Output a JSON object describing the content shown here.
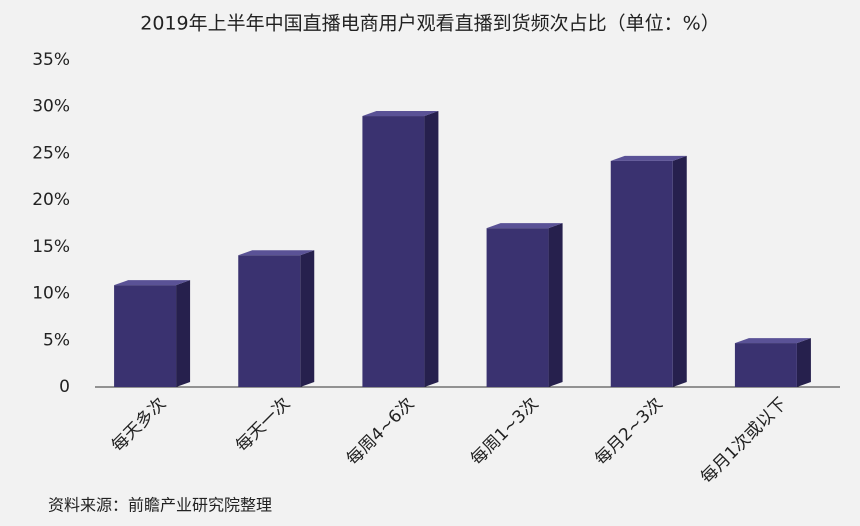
{
  "chart_data": {
    "type": "bar3d",
    "title": "2019年上半年中国直播电商用户观看直播到货频次占比（单位：%）",
    "categories": [
      "每天多次",
      "每天一次",
      "每周4~6次",
      "每周1~3次",
      "每月2~3次",
      "每月1次或以下"
    ],
    "values": [
      10.9,
      14.1,
      29.0,
      17.0,
      24.2,
      4.7
    ],
    "color": "#3a3270",
    "ylim": [
      0,
      35
    ],
    "yticks": [
      {
        "value": 0,
        "label": "0"
      },
      {
        "value": 5,
        "label": "5%"
      },
      {
        "value": 10,
        "label": "10%"
      },
      {
        "value": 15,
        "label": "15%"
      },
      {
        "value": 20,
        "label": "20%"
      },
      {
        "value": 25,
        "label": "25%"
      },
      {
        "value": 30,
        "label": "30%"
      },
      {
        "value": 35,
        "label": "35%"
      }
    ],
    "source": "资料来源：前瞻产业研究院整理"
  }
}
